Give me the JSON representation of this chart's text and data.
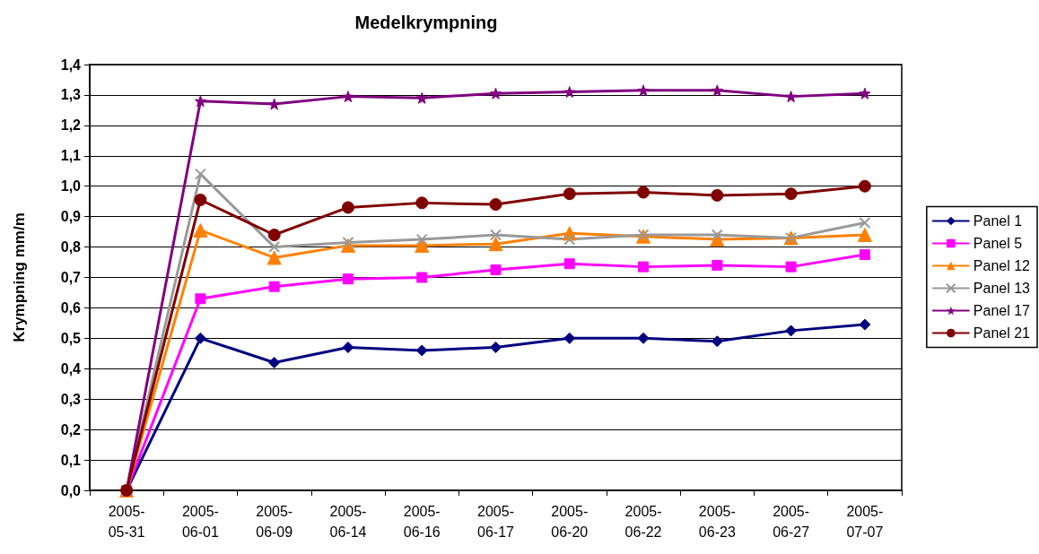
{
  "chart_data": {
    "type": "line",
    "title": "Medelkrympning",
    "ylabel": "Krympning mm/m",
    "categories": [
      "2005-05-31",
      "2005-06-01",
      "2005-06-09",
      "2005-06-14",
      "2005-06-16",
      "2005-06-17",
      "2005-06-20",
      "2005-06-22",
      "2005-06-23",
      "2005-06-27",
      "2005-07-07"
    ],
    "series": [
      {
        "name": "Panel 1",
        "color": "#000080",
        "marker": "diamond",
        "values": [
          0,
          0.5,
          0.42,
          0.47,
          0.46,
          0.47,
          0.5,
          0.5,
          0.49,
          0.525,
          0.545
        ]
      },
      {
        "name": "Panel 5",
        "color": "#ff00ff",
        "marker": "square",
        "values": [
          0,
          0.63,
          0.67,
          0.695,
          0.7,
          0.725,
          0.745,
          0.735,
          0.74,
          0.735,
          0.775
        ]
      },
      {
        "name": "Panel 12",
        "color": "#ff8000",
        "marker": "triangle",
        "values": [
          0,
          0.855,
          0.765,
          0.805,
          0.805,
          0.81,
          0.845,
          0.835,
          0.825,
          0.83,
          0.84
        ]
      },
      {
        "name": "Panel 13",
        "color": "#999999",
        "marker": "cross",
        "values": [
          0,
          1.04,
          0.8,
          0.815,
          0.825,
          0.84,
          0.825,
          0.84,
          0.84,
          0.83,
          0.88
        ]
      },
      {
        "name": "Panel 17",
        "color": "#800080",
        "marker": "star",
        "values": [
          0,
          1.28,
          1.27,
          1.295,
          1.29,
          1.305,
          1.31,
          1.315,
          1.315,
          1.295,
          1.305
        ]
      },
      {
        "name": "Panel 21",
        "color": "#800000",
        "marker": "circle",
        "values": [
          0,
          0.955,
          0.84,
          0.93,
          0.945,
          0.94,
          0.975,
          0.98,
          0.97,
          0.975,
          1.0
        ]
      }
    ],
    "ylim": [
      0,
      1.4
    ],
    "yticks": [
      {
        "value": 0,
        "label": "0,0"
      },
      {
        "value": 0.1,
        "label": "0,1"
      },
      {
        "value": 0.2,
        "label": "0,2"
      },
      {
        "value": 0.3,
        "label": "0,3"
      },
      {
        "value": 0.4,
        "label": "0,4"
      },
      {
        "value": 0.5,
        "label": "0,5"
      },
      {
        "value": 0.6,
        "label": "0,6"
      },
      {
        "value": 0.7,
        "label": "0,7"
      },
      {
        "value": 0.8,
        "label": "0,8"
      },
      {
        "value": 0.9,
        "label": "0,9"
      },
      {
        "value": 1.0,
        "label": "1,0"
      },
      {
        "value": 1.1,
        "label": "1,1"
      },
      {
        "value": 1.2,
        "label": "1,2"
      },
      {
        "value": 1.3,
        "label": "1,3"
      },
      {
        "value": 1.4,
        "label": "1,4"
      }
    ],
    "grid": "y",
    "legend": "right",
    "line_style": "solid"
  }
}
